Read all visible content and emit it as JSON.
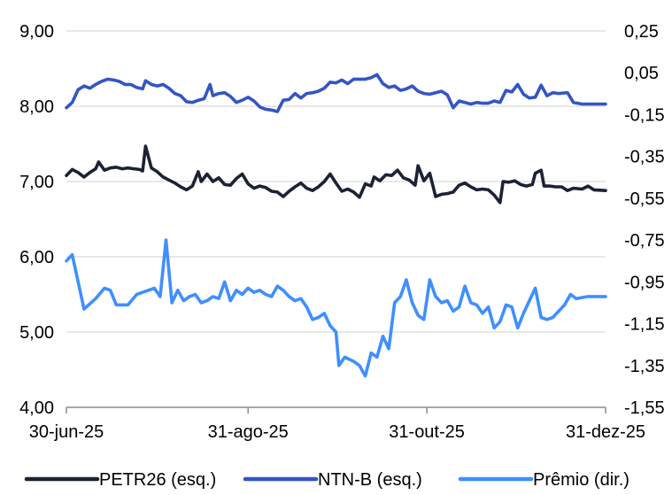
{
  "chart_data": {
    "type": "line",
    "title": "",
    "x_ticks": [
      "30-jun-25",
      "31-ago-25",
      "31-out-25",
      "31-dez-25"
    ],
    "x_range": [
      "2025-06-30",
      "2025-12-31"
    ],
    "y_left": {
      "ticks": [
        "9,00",
        "8,00",
        "7,00",
        "6,00",
        "5,00",
        "4,00"
      ],
      "ylim": [
        4.0,
        9.0
      ]
    },
    "y_right": {
      "ticks": [
        "0,25",
        "0,05",
        "-0,15",
        "-0,35",
        "-0,55",
        "-0,75",
        "-0,95",
        "-1,15",
        "-1,35",
        "-1,55"
      ],
      "ylim": [
        -1.55,
        0.25
      ]
    },
    "grid": "horizontal",
    "legend_position": "bottom",
    "series": [
      {
        "name": "PETR26 (esq.)",
        "axis": "left",
        "color": "#1b2234",
        "points": [
          [
            "2025-06-30",
            7.08
          ],
          [
            "2025-07-02",
            7.16
          ],
          [
            "2025-07-04",
            7.12
          ],
          [
            "2025-07-06",
            7.06
          ],
          [
            "2025-07-08",
            7.12
          ],
          [
            "2025-07-10",
            7.17
          ],
          [
            "2025-07-11",
            7.26
          ],
          [
            "2025-07-13",
            7.15
          ],
          [
            "2025-07-15",
            7.18
          ],
          [
            "2025-07-17",
            7.19
          ],
          [
            "2025-07-19",
            7.17
          ],
          [
            "2025-07-21",
            7.18
          ],
          [
            "2025-07-23",
            7.17
          ],
          [
            "2025-07-25",
            7.16
          ],
          [
            "2025-07-26",
            7.14
          ],
          [
            "2025-07-27",
            7.47
          ],
          [
            "2025-07-29",
            7.18
          ],
          [
            "2025-07-31",
            7.13
          ],
          [
            "2025-08-02",
            7.06
          ],
          [
            "2025-08-04",
            7.02
          ],
          [
            "2025-08-06",
            6.98
          ],
          [
            "2025-08-08",
            6.93
          ],
          [
            "2025-08-10",
            6.89
          ],
          [
            "2025-08-12",
            6.94
          ],
          [
            "2025-08-14",
            7.13
          ],
          [
            "2025-08-15",
            7.0
          ],
          [
            "2025-08-17",
            7.1
          ],
          [
            "2025-08-19",
            7.0
          ],
          [
            "2025-08-21",
            7.05
          ],
          [
            "2025-08-23",
            6.96
          ],
          [
            "2025-08-25",
            6.95
          ],
          [
            "2025-08-27",
            7.04
          ],
          [
            "2025-08-29",
            7.1
          ],
          [
            "2025-08-31",
            6.97
          ],
          [
            "2025-09-02",
            6.91
          ],
          [
            "2025-09-04",
            6.94
          ],
          [
            "2025-09-06",
            6.92
          ],
          [
            "2025-09-08",
            6.87
          ],
          [
            "2025-09-10",
            6.86
          ],
          [
            "2025-09-12",
            6.8
          ],
          [
            "2025-09-14",
            6.87
          ],
          [
            "2025-09-16",
            6.93
          ],
          [
            "2025-09-18",
            6.98
          ],
          [
            "2025-09-20",
            6.91
          ],
          [
            "2025-09-22",
            6.88
          ],
          [
            "2025-09-24",
            6.93
          ],
          [
            "2025-09-26",
            7.0
          ],
          [
            "2025-09-28",
            7.1
          ],
          [
            "2025-09-30",
            6.98
          ],
          [
            "2025-10-02",
            6.87
          ],
          [
            "2025-10-04",
            6.9
          ],
          [
            "2025-10-06",
            6.86
          ],
          [
            "2025-10-08",
            6.79
          ],
          [
            "2025-10-10",
            6.97
          ],
          [
            "2025-10-12",
            6.94
          ],
          [
            "2025-10-13",
            7.06
          ],
          [
            "2025-10-15",
            7.01
          ],
          [
            "2025-10-17",
            7.09
          ],
          [
            "2025-10-19",
            7.08
          ],
          [
            "2025-10-21",
            7.15
          ],
          [
            "2025-10-23",
            7.05
          ],
          [
            "2025-10-25",
            7.02
          ],
          [
            "2025-10-27",
            6.95
          ],
          [
            "2025-10-28",
            7.21
          ],
          [
            "2025-10-30",
            7.01
          ],
          [
            "2025-11-01",
            7.11
          ],
          [
            "2025-11-03",
            6.8
          ],
          [
            "2025-11-05",
            6.83
          ],
          [
            "2025-11-07",
            6.84
          ],
          [
            "2025-11-09",
            6.86
          ],
          [
            "2025-11-11",
            6.95
          ],
          [
            "2025-11-13",
            6.98
          ],
          [
            "2025-11-15",
            6.93
          ],
          [
            "2025-11-17",
            6.89
          ],
          [
            "2025-11-19",
            6.9
          ],
          [
            "2025-11-21",
            6.89
          ],
          [
            "2025-11-23",
            6.82
          ],
          [
            "2025-11-25",
            6.72
          ],
          [
            "2025-11-26",
            7.0
          ],
          [
            "2025-11-28",
            6.99
          ],
          [
            "2025-11-30",
            7.01
          ],
          [
            "2025-12-02",
            6.96
          ],
          [
            "2025-12-04",
            6.94
          ],
          [
            "2025-12-06",
            6.96
          ],
          [
            "2025-12-07",
            7.11
          ],
          [
            "2025-12-09",
            7.15
          ],
          [
            "2025-12-10",
            6.94
          ],
          [
            "2025-12-12",
            6.94
          ],
          [
            "2025-12-14",
            6.93
          ],
          [
            "2025-12-16",
            6.93
          ],
          [
            "2025-12-18",
            6.88
          ],
          [
            "2025-12-20",
            6.91
          ],
          [
            "2025-12-23",
            6.9
          ],
          [
            "2025-12-25",
            6.94
          ],
          [
            "2025-12-27",
            6.89
          ],
          [
            "2025-12-31",
            6.88
          ]
        ]
      },
      {
        "name": "NTN-B (esq.)",
        "axis": "left",
        "color": "#3355c4",
        "points": [
          [
            "2025-06-30",
            7.98
          ],
          [
            "2025-07-02",
            8.05
          ],
          [
            "2025-07-04",
            8.22
          ],
          [
            "2025-07-06",
            8.27
          ],
          [
            "2025-07-08",
            8.24
          ],
          [
            "2025-07-10",
            8.29
          ],
          [
            "2025-07-12",
            8.33
          ],
          [
            "2025-07-14",
            8.36
          ],
          [
            "2025-07-16",
            8.35
          ],
          [
            "2025-07-18",
            8.33
          ],
          [
            "2025-07-20",
            8.29
          ],
          [
            "2025-07-22",
            8.29
          ],
          [
            "2025-07-24",
            8.25
          ],
          [
            "2025-07-26",
            8.23
          ],
          [
            "2025-07-27",
            8.34
          ],
          [
            "2025-07-29",
            8.29
          ],
          [
            "2025-07-31",
            8.27
          ],
          [
            "2025-08-02",
            8.29
          ],
          [
            "2025-08-04",
            8.24
          ],
          [
            "2025-08-06",
            8.17
          ],
          [
            "2025-08-08",
            8.14
          ],
          [
            "2025-08-10",
            8.06
          ],
          [
            "2025-08-12",
            8.05
          ],
          [
            "2025-08-14",
            8.08
          ],
          [
            "2025-08-16",
            8.1
          ],
          [
            "2025-08-18",
            8.29
          ],
          [
            "2025-08-19",
            8.14
          ],
          [
            "2025-08-21",
            8.17
          ],
          [
            "2025-08-23",
            8.18
          ],
          [
            "2025-08-25",
            8.13
          ],
          [
            "2025-08-27",
            8.05
          ],
          [
            "2025-08-29",
            8.08
          ],
          [
            "2025-08-31",
            8.12
          ],
          [
            "2025-09-02",
            8.07
          ],
          [
            "2025-09-04",
            7.99
          ],
          [
            "2025-09-06",
            7.96
          ],
          [
            "2025-09-08",
            7.95
          ],
          [
            "2025-09-10",
            7.93
          ],
          [
            "2025-09-12",
            8.08
          ],
          [
            "2025-09-14",
            8.09
          ],
          [
            "2025-09-16",
            8.17
          ],
          [
            "2025-09-18",
            8.11
          ],
          [
            "2025-09-20",
            8.17
          ],
          [
            "2025-09-22",
            8.18
          ],
          [
            "2025-09-24",
            8.2
          ],
          [
            "2025-09-26",
            8.24
          ],
          [
            "2025-09-28",
            8.32
          ],
          [
            "2025-09-30",
            8.31
          ],
          [
            "2025-10-02",
            8.35
          ],
          [
            "2025-10-04",
            8.3
          ],
          [
            "2025-10-06",
            8.36
          ],
          [
            "2025-10-08",
            8.36
          ],
          [
            "2025-10-10",
            8.36
          ],
          [
            "2025-10-12",
            8.38
          ],
          [
            "2025-10-14",
            8.42
          ],
          [
            "2025-10-16",
            8.3
          ],
          [
            "2025-10-18",
            8.25
          ],
          [
            "2025-10-20",
            8.27
          ],
          [
            "2025-10-22",
            8.21
          ],
          [
            "2025-10-24",
            8.23
          ],
          [
            "2025-10-26",
            8.27
          ],
          [
            "2025-10-28",
            8.2
          ],
          [
            "2025-10-30",
            8.17
          ],
          [
            "2025-11-01",
            8.16
          ],
          [
            "2025-11-03",
            8.18
          ],
          [
            "2025-11-05",
            8.2
          ],
          [
            "2025-11-07",
            8.15
          ],
          [
            "2025-11-09",
            7.98
          ],
          [
            "2025-11-11",
            8.07
          ],
          [
            "2025-11-13",
            8.05
          ],
          [
            "2025-11-15",
            8.03
          ],
          [
            "2025-11-17",
            8.05
          ],
          [
            "2025-11-19",
            8.04
          ],
          [
            "2025-11-21",
            8.04
          ],
          [
            "2025-11-23",
            8.07
          ],
          [
            "2025-11-25",
            8.05
          ],
          [
            "2025-11-27",
            8.21
          ],
          [
            "2025-11-29",
            8.19
          ],
          [
            "2025-12-01",
            8.29
          ],
          [
            "2025-12-03",
            8.16
          ],
          [
            "2025-12-05",
            8.11
          ],
          [
            "2025-12-07",
            8.12
          ],
          [
            "2025-12-09",
            8.28
          ],
          [
            "2025-12-11",
            8.14
          ],
          [
            "2025-12-13",
            8.18
          ],
          [
            "2025-12-15",
            8.17
          ],
          [
            "2025-12-18",
            8.18
          ],
          [
            "2025-12-20",
            8.05
          ],
          [
            "2025-12-23",
            8.03
          ],
          [
            "2025-12-31",
            8.03
          ]
        ]
      },
      {
        "name": "Prêmio (dir.)",
        "axis": "right",
        "color": "#3f8fff",
        "points": [
          [
            "2025-06-30",
            -0.85
          ],
          [
            "2025-07-02",
            -0.82
          ],
          [
            "2025-07-06",
            -1.08
          ],
          [
            "2025-07-10",
            -1.03
          ],
          [
            "2025-07-13",
            -0.98
          ],
          [
            "2025-07-15",
            -0.99
          ],
          [
            "2025-07-17",
            -1.06
          ],
          [
            "2025-07-21",
            -1.06
          ],
          [
            "2025-07-24",
            -1.01
          ],
          [
            "2025-07-26",
            -1.0
          ],
          [
            "2025-07-28",
            -0.99
          ],
          [
            "2025-07-30",
            -0.98
          ],
          [
            "2025-08-01",
            -1.02
          ],
          [
            "2025-08-03",
            -0.75
          ],
          [
            "2025-08-05",
            -1.05
          ],
          [
            "2025-08-07",
            -0.99
          ],
          [
            "2025-08-09",
            -1.04
          ],
          [
            "2025-08-11",
            -1.02
          ],
          [
            "2025-08-13",
            -1.01
          ],
          [
            "2025-08-15",
            -1.05
          ],
          [
            "2025-08-17",
            -1.04
          ],
          [
            "2025-08-19",
            -1.02
          ],
          [
            "2025-08-21",
            -1.03
          ],
          [
            "2025-08-23",
            -0.95
          ],
          [
            "2025-08-25",
            -1.04
          ],
          [
            "2025-08-27",
            -0.99
          ],
          [
            "2025-08-29",
            -1.01
          ],
          [
            "2025-08-31",
            -0.98
          ],
          [
            "2025-09-02",
            -1.0
          ],
          [
            "2025-09-04",
            -0.99
          ],
          [
            "2025-09-06",
            -1.01
          ],
          [
            "2025-09-08",
            -1.02
          ],
          [
            "2025-09-10",
            -0.97
          ],
          [
            "2025-09-12",
            -0.99
          ],
          [
            "2025-09-14",
            -1.02
          ],
          [
            "2025-09-16",
            -1.04
          ],
          [
            "2025-09-18",
            -1.03
          ],
          [
            "2025-09-20",
            -1.07
          ],
          [
            "2025-09-22",
            -1.13
          ],
          [
            "2025-09-24",
            -1.12
          ],
          [
            "2025-09-26",
            -1.1
          ],
          [
            "2025-09-28",
            -1.16
          ],
          [
            "2025-09-30",
            -1.19
          ],
          [
            "2025-10-01",
            -1.35
          ],
          [
            "2025-10-03",
            -1.31
          ],
          [
            "2025-10-06",
            -1.33
          ],
          [
            "2025-10-08",
            -1.35
          ],
          [
            "2025-10-10",
            -1.4
          ],
          [
            "2025-10-12",
            -1.29
          ],
          [
            "2025-10-14",
            -1.31
          ],
          [
            "2025-10-16",
            -1.21
          ],
          [
            "2025-10-18",
            -1.27
          ],
          [
            "2025-10-20",
            -1.05
          ],
          [
            "2025-10-22",
            -1.02
          ],
          [
            "2025-10-24",
            -0.94
          ],
          [
            "2025-10-26",
            -1.05
          ],
          [
            "2025-10-28",
            -1.11
          ],
          [
            "2025-10-30",
            -1.13
          ],
          [
            "2025-11-01",
            -0.94
          ],
          [
            "2025-11-03",
            -1.02
          ],
          [
            "2025-11-05",
            -1.05
          ],
          [
            "2025-11-07",
            -1.04
          ],
          [
            "2025-11-09",
            -1.09
          ],
          [
            "2025-11-11",
            -1.07
          ],
          [
            "2025-11-13",
            -0.97
          ],
          [
            "2025-11-15",
            -1.05
          ],
          [
            "2025-11-17",
            -1.06
          ],
          [
            "2025-11-19",
            -1.1
          ],
          [
            "2025-11-21",
            -1.07
          ],
          [
            "2025-11-23",
            -1.17
          ],
          [
            "2025-11-25",
            -1.14
          ],
          [
            "2025-11-27",
            -1.06
          ],
          [
            "2025-11-29",
            -1.07
          ],
          [
            "2025-12-01",
            -1.17
          ],
          [
            "2025-12-03",
            -1.1
          ],
          [
            "2025-12-05",
            -1.04
          ],
          [
            "2025-12-07",
            -0.98
          ],
          [
            "2025-12-09",
            -1.12
          ],
          [
            "2025-12-11",
            -1.13
          ],
          [
            "2025-12-13",
            -1.12
          ],
          [
            "2025-12-15",
            -1.09
          ],
          [
            "2025-12-17",
            -1.06
          ],
          [
            "2025-12-19",
            -1.01
          ],
          [
            "2025-12-21",
            -1.03
          ],
          [
            "2025-12-25",
            -1.02
          ],
          [
            "2025-12-31",
            -1.02
          ]
        ]
      }
    ]
  }
}
